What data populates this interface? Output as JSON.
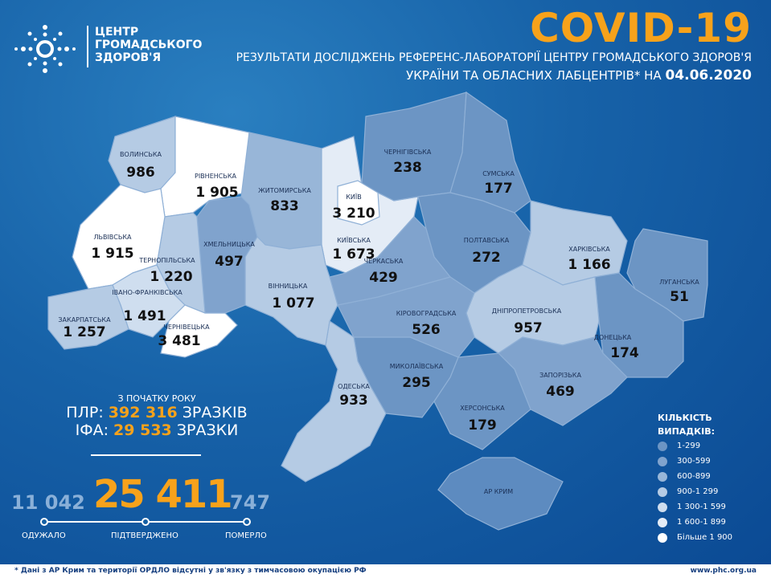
{
  "header": {
    "logo_lines": [
      "ЦЕНТР",
      "ГРОМАДСЬКОГО",
      "ЗДОРОВ'Я"
    ],
    "title": "COVID-19",
    "subtitle1": "РЕЗУЛЬТАТИ ДОСЛІДЖЕНЬ РЕФЕРЕНС-ЛАБОРАТОРІЇ ЦЕНТРУ ГРОМАДСЬКОГО ЗДОРОВ'Я",
    "subtitle2": "УКРАЇНИ ТА ОБЛАСНИХ ЛАБЦЕНТРІВ* НА",
    "date": "04.06.2020"
  },
  "regions": [
    {
      "name": "ВОЛИНСЬКА",
      "value": "986",
      "cases": 986
    },
    {
      "name": "РІВНЕНСЬКА",
      "value": "1 905",
      "cases": 1905
    },
    {
      "name": "ЖИТОМИРСЬКА",
      "value": "833",
      "cases": 833
    },
    {
      "name": "КИЇВСЬКА",
      "value": "1 673",
      "cases": 1673
    },
    {
      "name": "ЧЕРНІГІВСЬКА",
      "value": "238",
      "cases": 238
    },
    {
      "name": "СУМСЬКА",
      "value": "177",
      "cases": 177
    },
    {
      "name": "ПОЛТАВСЬКА",
      "value": "272",
      "cases": 272
    },
    {
      "name": "ХАРКІВСЬКА",
      "value": "1 166",
      "cases": 1166
    },
    {
      "name": "ЛУГАНСЬКА",
      "value": "51",
      "cases": 51
    },
    {
      "name": "ДОНЕЦЬКА",
      "value": "174",
      "cases": 174
    },
    {
      "name": "ДНІПРОПЕТРОВСЬКА",
      "value": "957",
      "cases": 957
    },
    {
      "name": "ЗАПОРІЗЬКА",
      "value": "469",
      "cases": 469
    },
    {
      "name": "ХЕРСОНСЬКА",
      "value": "179",
      "cases": 179
    },
    {
      "name": "АР КРИМ",
      "value": "",
      "cases": null
    },
    {
      "name": "МИКОЛАЇВСЬКА",
      "value": "295",
      "cases": 295
    },
    {
      "name": "ОДЕСЬКА",
      "value": "933",
      "cases": 933
    },
    {
      "name": "КІРОВОГРАДСЬКА",
      "value": "526",
      "cases": 526
    },
    {
      "name": "ЧЕРКАСЬКА",
      "value": "429",
      "cases": 429
    },
    {
      "name": "ВІННИЦЬКА",
      "value": "1 077",
      "cases": 1077
    },
    {
      "name": "ХМЕЛЬНИЦЬКА",
      "value": "497",
      "cases": 497
    },
    {
      "name": "ТЕРНОПІЛЬСЬКА",
      "value": "1 220",
      "cases": 1220
    },
    {
      "name": "ЛЬВІВСЬКА",
      "value": "1 915",
      "cases": 1915
    },
    {
      "name": "ІВАНО-ФРАНКІВСЬКА",
      "value": "1 491",
      "cases": 1491
    },
    {
      "name": "ЗАКАРПАТСЬКА",
      "value": "1 257",
      "cases": 1257
    },
    {
      "name": "ЧЕРНІВЕЦЬКА",
      "value": "3 481",
      "cases": 3481
    },
    {
      "name": "КИЇВ",
      "value": "3 210",
      "cases": 3210
    }
  ],
  "tests": {
    "since": "З ПОЧАТКУ РОКУ",
    "pcr_label": "ПЛР:",
    "pcr_value": "392 316",
    "pcr_unit": "ЗРАЗКІВ",
    "ifa_label": "ІФА:",
    "ifa_value": "29 533",
    "ifa_unit": "ЗРАЗКИ"
  },
  "totals": {
    "recovered": "11 042",
    "recovered_label": "ОДУЖАЛО",
    "confirmed": "25 411",
    "confirmed_label": "ПІДТВЕРДЖЕНО",
    "deaths": "747",
    "deaths_label": "ПОМЕРЛО"
  },
  "legend": {
    "title1": "КІЛЬКІСТЬ",
    "title2": "ВИПАДКІВ:",
    "items": [
      {
        "label": "1-299",
        "color": "#6c95c4"
      },
      {
        "label": "300-599",
        "color": "#80a3cd"
      },
      {
        "label": "600-899",
        "color": "#98b6d8"
      },
      {
        "label": "900-1 299",
        "color": "#b5cbe4"
      },
      {
        "label": "1 300-1 599",
        "color": "#cfdeef"
      },
      {
        "label": "1 600-1 899",
        "color": "#e4ecf6"
      },
      {
        "label": "Більше 1 900",
        "color": "#ffffff"
      }
    ]
  },
  "footer": {
    "note": "* Дані з АР Крим та території ОРДЛО відсутні у зв'язку з тимчасовою окупацією РФ",
    "url": "www.phc.org.ua"
  },
  "colors": {
    "accent": "#f7a21b",
    "background": "#1762a8",
    "no_data": "#5d8bc0"
  }
}
